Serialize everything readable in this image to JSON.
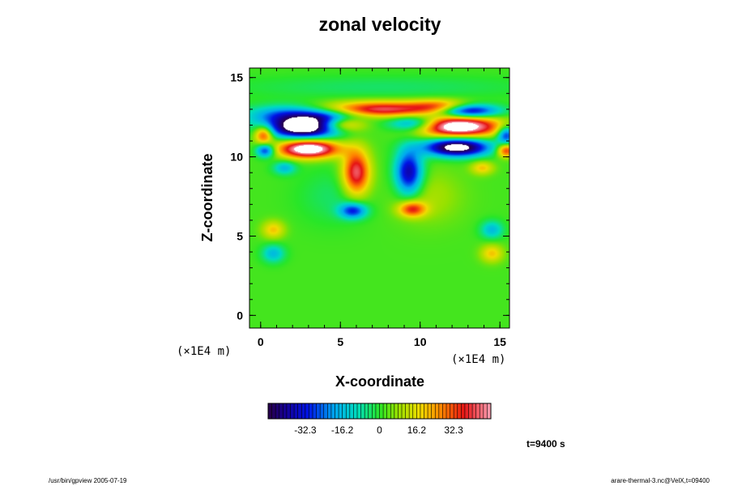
{
  "chart_data": {
    "type": "heatmap",
    "title": "zonal velocity",
    "xlabel": "X-coordinate",
    "ylabel": "Z-coordinate",
    "x_unit_label": "(×1E4 m)",
    "y_unit_label": "(×1E4 m)",
    "xlim": [
      -0.7,
      15.6
    ],
    "ylim": [
      -0.8,
      15.6
    ],
    "x_ticks": [
      0,
      5,
      10,
      15
    ],
    "y_ticks": [
      0,
      5,
      10,
      15
    ],
    "x_tick_labels": [
      "0",
      "5",
      "10",
      "15"
    ],
    "y_tick_labels": [
      "0",
      "5",
      "10",
      "15"
    ],
    "colorbar": {
      "range": [
        -48.5,
        48.5
      ],
      "ticks": [
        -32.3,
        -16.2,
        0,
        16.2,
        32.3
      ],
      "tick_labels": [
        "-32.3",
        "-16.2",
        "0",
        "16.2",
        "32.3"
      ],
      "out_of_range_color": "#ffffff"
    },
    "background_value": 2,
    "features": [
      {
        "x": 7.5,
        "z": 13.0,
        "sx": 2.5,
        "sz": 0.35,
        "v": 40
      },
      {
        "x": 13.0,
        "z": 12.9,
        "sx": 1.3,
        "sz": 0.3,
        "v": -45
      },
      {
        "x": 11.3,
        "z": 13.2,
        "sx": 1.3,
        "sz": 0.3,
        "v": 24
      },
      {
        "x": 1.8,
        "z": 12.6,
        "sx": 1.8,
        "sz": 0.45,
        "v": -30
      },
      {
        "x": 4.5,
        "z": 12.5,
        "sx": 1.4,
        "sz": 0.35,
        "v": -26
      },
      {
        "x": 2.7,
        "z": 11.8,
        "sx": 1.5,
        "sz": 0.45,
        "v": -60
      },
      {
        "x": 5.1,
        "z": 12.1,
        "sx": 1.0,
        "sz": 0.35,
        "v": 30
      },
      {
        "x": 12.4,
        "z": 11.9,
        "sx": 1.8,
        "sz": 0.45,
        "v": 60
      },
      {
        "x": 9.6,
        "z": 12.1,
        "sx": 1.1,
        "sz": 0.35,
        "v": -28
      },
      {
        "x": 3.0,
        "z": 10.5,
        "sx": 1.3,
        "sz": 0.4,
        "v": 60
      },
      {
        "x": 12.3,
        "z": 10.6,
        "sx": 1.4,
        "sz": 0.4,
        "v": -60
      },
      {
        "x": 0.2,
        "z": 11.4,
        "sx": 0.4,
        "sz": 0.4,
        "v": 35
      },
      {
        "x": 0.3,
        "z": 10.4,
        "sx": 0.4,
        "sz": 0.3,
        "v": -35
      },
      {
        "x": 15.4,
        "z": 11.4,
        "sx": 0.4,
        "sz": 0.4,
        "v": -35
      },
      {
        "x": 15.4,
        "z": 10.4,
        "sx": 0.4,
        "sz": 0.3,
        "v": 35
      },
      {
        "x": 6.0,
        "z": 9.0,
        "sx": 0.6,
        "sz": 1.0,
        "v": 42
      },
      {
        "x": 9.3,
        "z": 9.0,
        "sx": 0.6,
        "sz": 1.0,
        "v": -42
      },
      {
        "x": 5.8,
        "z": 6.6,
        "sx": 0.6,
        "sz": 0.35,
        "v": -32
      },
      {
        "x": 9.5,
        "z": 6.7,
        "sx": 0.6,
        "sz": 0.35,
        "v": 32
      },
      {
        "x": 1.5,
        "z": 9.3,
        "sx": 0.5,
        "sz": 0.3,
        "v": -18
      },
      {
        "x": 13.9,
        "z": 9.3,
        "sx": 0.5,
        "sz": 0.3,
        "v": 18
      },
      {
        "x": 0.8,
        "z": 5.4,
        "sx": 0.5,
        "sz": 0.4,
        "v": 18
      },
      {
        "x": 0.8,
        "z": 3.9,
        "sx": 0.5,
        "sz": 0.4,
        "v": -18
      },
      {
        "x": 14.5,
        "z": 5.4,
        "sx": 0.5,
        "sz": 0.4,
        "v": -18
      },
      {
        "x": 14.5,
        "z": 3.9,
        "sx": 0.5,
        "sz": 0.4,
        "v": 18
      },
      {
        "x": 10.5,
        "z": 7.5,
        "sx": 1.5,
        "sz": 1.2,
        "v": 8
      },
      {
        "x": 4.5,
        "z": 7.5,
        "sx": 1.5,
        "sz": 1.2,
        "v": -6
      },
      {
        "x": 7.6,
        "z": 14.4,
        "sx": 7.0,
        "sz": 0.5,
        "v": -6
      }
    ]
  },
  "time_label": "t=9400 s",
  "footer_left": "/usr/bin/gpview 2005-07-19",
  "footer_right": "arare-thermal-3.nc@VelX,t=09400"
}
